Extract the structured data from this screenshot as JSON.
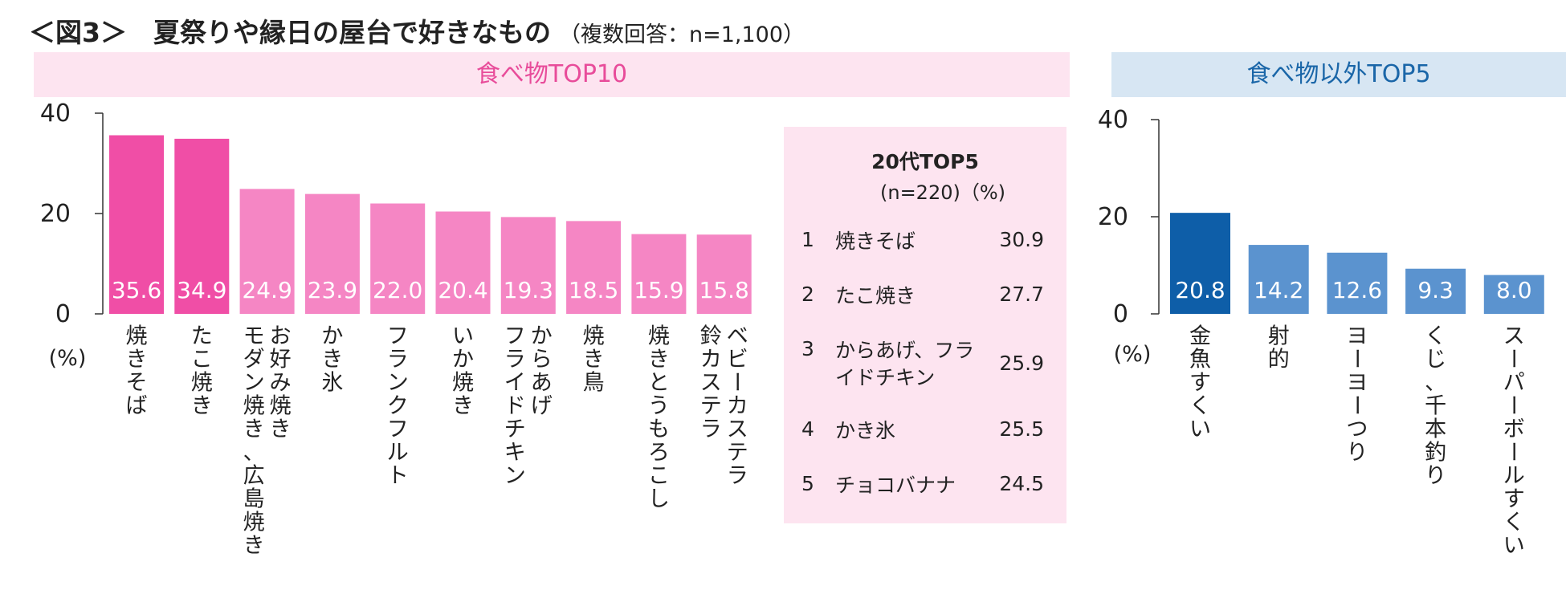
{
  "header": {
    "title": "＜図3＞　夏祭りや縁日の屋台で好きなもの",
    "subtitle": "（複数回答：n=1,100）"
  },
  "bands": {
    "food": "食べ物TOP10",
    "other": "食べ物以外TOP5"
  },
  "chart_data": [
    {
      "type": "bar",
      "categories": [
        "焼きそば",
        "たこ焼き",
        "お好み焼き\nモダン焼き、広島焼き",
        "かき氷",
        "フランクフルト",
        "いか焼き",
        "からあげ\nフライドチキン",
        "焼き鳥",
        "焼きとうもろこし",
        "ベビーカステラ\n鈴カステラ"
      ],
      "values": [
        35.6,
        34.9,
        24.9,
        23.9,
        22.0,
        20.4,
        19.3,
        18.5,
        15.9,
        15.8
      ],
      "yticks": [
        0,
        20,
        40
      ],
      "ylim": [
        0,
        40
      ],
      "ylabel": "(%)",
      "colors": [
        "#f04ea6",
        "#f04ea6",
        "#f586c4",
        "#f586c4",
        "#f586c4",
        "#f586c4",
        "#f586c4",
        "#f586c4",
        "#f586c4",
        "#f586c4"
      ]
    },
    {
      "type": "bar",
      "categories": [
        "金魚すくい",
        "射的",
        "ヨーヨーつり",
        "くじ、千本釣り",
        "スーパーボールすくい"
      ],
      "values": [
        20.8,
        14.2,
        12.6,
        9.3,
        8.0
      ],
      "yticks": [
        0,
        20,
        40
      ],
      "ylim": [
        0,
        40
      ],
      "ylabel": "(%)",
      "colors": [
        "#0e5ea8",
        "#5b93cf",
        "#5b93cf",
        "#5b93cf",
        "#5b93cf"
      ]
    }
  ],
  "rank_box": {
    "title": "20代TOP5",
    "subtitle": "(n=220)（%)",
    "rows": [
      {
        "rank": "1",
        "name": "焼きそば",
        "value": "30.9"
      },
      {
        "rank": "2",
        "name": "たこ焼き",
        "value": "27.7"
      },
      {
        "rank": "3",
        "name": "からあげ、フライドチキン",
        "value": "25.9"
      },
      {
        "rank": "4",
        "name": "かき氷",
        "value": "25.5"
      },
      {
        "rank": "5",
        "name": "チョコバナナ",
        "value": "24.5"
      }
    ]
  }
}
